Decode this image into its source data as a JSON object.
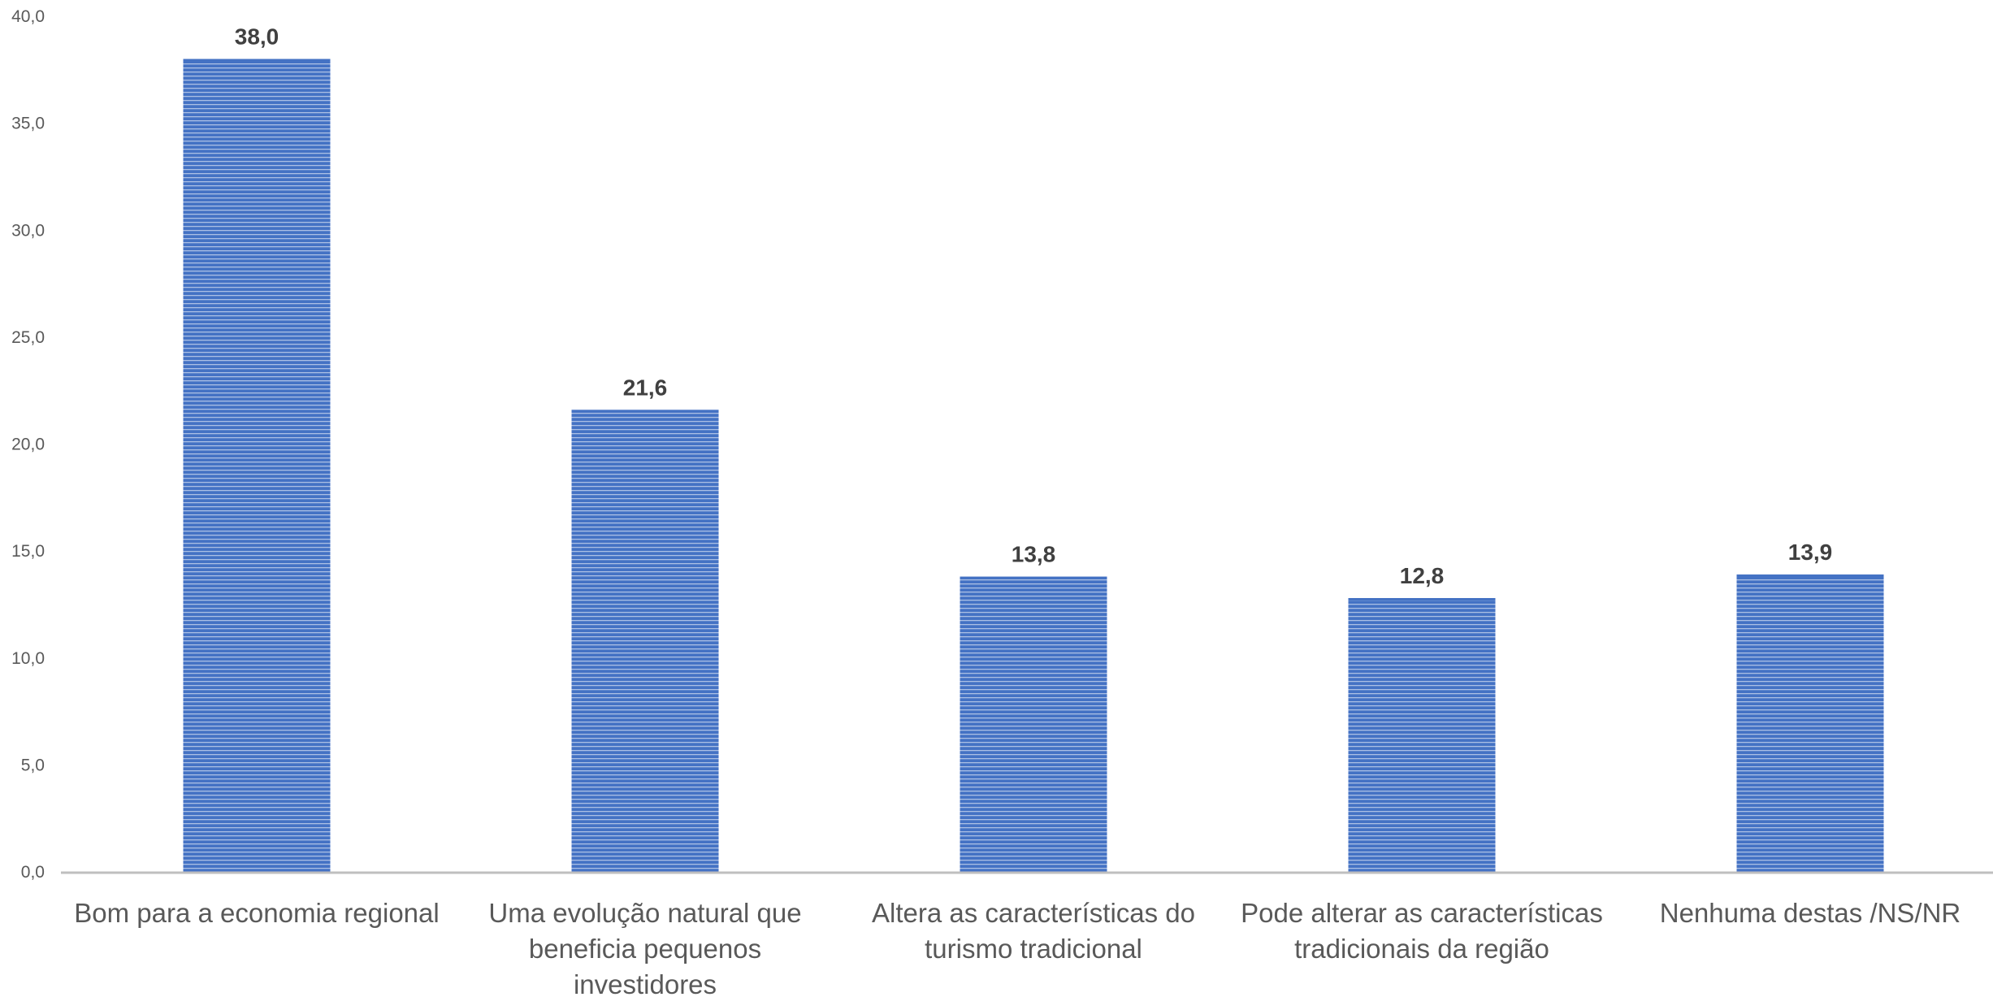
{
  "chart_data": {
    "type": "bar",
    "categories": [
      [
        "Bom para a economia regional"
      ],
      [
        "Uma evolução natural que",
        "beneficia pequenos",
        "investidores"
      ],
      [
        "Altera as características do",
        "turismo tradicional"
      ],
      [
        "Pode alterar as características",
        "tradicionais da região"
      ],
      [
        "Nenhuma destas /NS/NR"
      ]
    ],
    "values": [
      38.0,
      21.6,
      13.8,
      12.8,
      13.9
    ],
    "value_labels": [
      "38,0",
      "21,6",
      "13,8",
      "12,8",
      "13,9"
    ],
    "ylim": [
      0,
      40
    ],
    "y_ticks": [
      0,
      5,
      10,
      15,
      20,
      25,
      30,
      35,
      40
    ],
    "y_tick_labels": [
      "0,0",
      "5,0",
      "10,0",
      "15,0",
      "20,0",
      "25,0",
      "30,0",
      "35,0",
      "40,0"
    ],
    "grid": false,
    "legend": "none",
    "colors": {
      "bar": "#4472c4",
      "bar_stripe": "#ffffff",
      "axis": "#bfbfbf"
    }
  }
}
